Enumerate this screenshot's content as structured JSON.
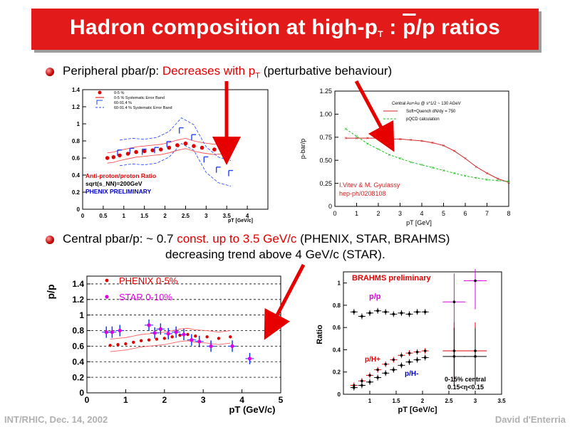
{
  "slide": {
    "title_main": "Hadron composition at high-p",
    "title_sub": "T",
    "title_sep": " : ",
    "title_pbar": "p",
    "title_tail": "/p ratios",
    "bullet1": {
      "prefix": "Peripheral pbar/p: ",
      "highlight": "Decreases with p",
      "highlight_sub": "T",
      "suffix": " (perturbative behaviour)"
    },
    "bullet2": {
      "prefix": "Central pbar/p:  ~ 0.7 ",
      "highlight": "const. up to 3.5 GeV/c",
      "suffix": " (PHENIX, STAR, BRAHMS)",
      "line2": "decreasing trend above 4 GeV/c (STAR)."
    },
    "footer_left": "INT/RHIC, Dec. 14, 2002",
    "footer_right": "David d'Enterria",
    "accent_color": "#e21a1a"
  },
  "chart_data": [
    {
      "type": "scatter",
      "legend": [
        "0-5 %",
        "0-5 % Systematic Error Band",
        "60-91.4 %",
        "60-91.4 % Systematic Error Band"
      ],
      "annotation_1": "Anti-proton/proton Ratio",
      "annotation_2": "sqrt(s_NN)=200GeV",
      "annotation_3": "PHENIX PRELIMINARY",
      "xlabel": "pT [GeV/c]",
      "ylabel": "",
      "xlim": [
        0,
        4.5
      ],
      "ylim": [
        0,
        1.4
      ],
      "xticks": [
        "0",
        "0.5",
        "1",
        "1.5",
        "2",
        "2.5",
        "3",
        "3.5",
        "4"
      ],
      "yticks": [
        "0",
        "0.2",
        "0.4",
        "0.6",
        "0.8",
        "1",
        "1.2",
        "1.4"
      ],
      "series": [
        {
          "name": "0-5 %",
          "x": [
            0.6,
            0.75,
            0.9,
            1.1,
            1.3,
            1.5,
            1.7,
            1.9,
            2.1,
            2.3,
            2.5,
            2.7,
            2.9,
            3.2,
            3.6
          ],
          "values": [
            0.6,
            0.61,
            0.63,
            0.65,
            0.67,
            0.68,
            0.69,
            0.7,
            0.72,
            0.75,
            0.77,
            0.74,
            0.72,
            0.7,
            0.72
          ]
        },
        {
          "name": "60-91.4 %",
          "x": [
            0.9,
            1.2,
            1.5,
            1.8,
            2.1,
            2.4,
            2.7,
            3.0,
            3.3,
            3.6
          ],
          "values": [
            0.66,
            0.68,
            0.67,
            0.69,
            0.76,
            0.92,
            0.84,
            0.58,
            0.46,
            0.42
          ]
        }
      ]
    },
    {
      "type": "line",
      "annotation_1": "Central Au+Au @ s^1/2 ~ 130 AGeV",
      "legend": [
        "Soft+Quench dN/dy = 750",
        "pQCD calculation"
      ],
      "credit_1": "I.Vitev & M. Gyulassy",
      "credit_2": "hep-ph/0208108",
      "xlabel": "pT [GeV]",
      "ylabel": "p-bar/p",
      "xlim": [
        0,
        8
      ],
      "ylim": [
        0,
        1.25
      ],
      "xticks": [
        "0",
        "1",
        "2",
        "3",
        "4",
        "5",
        "6",
        "7",
        "8"
      ],
      "yticks": [
        "0",
        "0.25",
        "0.50",
        "0.75",
        "1.00",
        "1.25"
      ],
      "series": [
        {
          "name": "Soft+Quench dN/dy = 750",
          "x": [
            0.5,
            1,
            1.5,
            2,
            2.5,
            3,
            3.5,
            4,
            4.5,
            5,
            5.5,
            6,
            6.5,
            7,
            7.5,
            8
          ],
          "values": [
            0.74,
            0.74,
            0.74,
            0.74,
            0.73,
            0.73,
            0.72,
            0.71,
            0.69,
            0.66,
            0.6,
            0.52,
            0.43,
            0.36,
            0.3,
            0.26
          ]
        },
        {
          "name": "pQCD calculation",
          "x": [
            0.5,
            1,
            1.5,
            2,
            2.5,
            3,
            3.5,
            4,
            4.5,
            5,
            5.5,
            6,
            6.5,
            7,
            7.5,
            8
          ],
          "values": [
            0.84,
            0.76,
            0.68,
            0.62,
            0.56,
            0.52,
            0.48,
            0.45,
            0.42,
            0.39,
            0.36,
            0.33,
            0.31,
            0.29,
            0.28,
            0.27
          ]
        }
      ]
    },
    {
      "type": "scatter",
      "legend": [
        "PHENIX 0-5%",
        "STAR 0-10%"
      ],
      "xlabel": "pT (GeV/c)",
      "ylabel": "p/p",
      "xlim": [
        0,
        5
      ],
      "ylim": [
        0,
        1.5
      ],
      "xticks": [
        "0",
        "1",
        "2",
        "3",
        "4",
        "5"
      ],
      "yticks": [
        "0",
        "0.2",
        "0.4",
        "0.6",
        "0.8",
        "1",
        "1.2",
        "1.4"
      ],
      "series": [
        {
          "name": "PHENIX 0-5%",
          "x": [
            0.6,
            0.8,
            1.0,
            1.2,
            1.4,
            1.6,
            1.8,
            2.0,
            2.2,
            2.4,
            2.6,
            2.8,
            3.1,
            3.4,
            3.7
          ],
          "values": [
            0.61,
            0.62,
            0.63,
            0.65,
            0.67,
            0.68,
            0.69,
            0.7,
            0.72,
            0.74,
            0.75,
            0.73,
            0.72,
            0.7,
            0.72
          ]
        },
        {
          "name": "STAR 0-10%",
          "x": [
            0.5,
            0.65,
            0.85,
            1.6,
            1.75,
            1.9,
            2.1,
            2.3,
            2.5,
            2.7,
            2.9,
            3.2,
            3.75,
            4.2
          ],
          "values": [
            0.78,
            0.78,
            0.8,
            0.87,
            0.77,
            0.82,
            0.76,
            0.78,
            0.75,
            0.68,
            0.66,
            0.6,
            0.6,
            0.44
          ]
        }
      ]
    },
    {
      "type": "scatter",
      "title": "BRAHMS preliminary",
      "labels": [
        "p/p",
        "p/H+",
        "p/H-",
        "0-15% central",
        "0.15<η<0.15"
      ],
      "xlabel": "pT [GeV/c]",
      "ylabel": "Ratio",
      "xlim": [
        0.5,
        3.5
      ],
      "ylim": [
        0,
        1.1
      ],
      "xticks": [
        "1",
        "1.5",
        "2",
        "2.5",
        "3",
        "3.5"
      ],
      "yticks": [
        "0",
        "0.2",
        "0.4",
        "0.6",
        "0.8",
        "1"
      ],
      "series": [
        {
          "name": "p/p",
          "x": [
            0.7,
            0.85,
            1.0,
            1.15,
            1.3,
            1.45,
            1.6,
            1.75,
            1.9,
            2.05,
            2.6,
            3.0
          ],
          "values": [
            0.74,
            0.7,
            0.73,
            0.75,
            0.74,
            0.72,
            0.73,
            0.72,
            0.74,
            0.74,
            0.83,
            1.02
          ]
        },
        {
          "name": "p/H+",
          "x": [
            0.7,
            0.85,
            1.0,
            1.15,
            1.3,
            1.45,
            1.6,
            1.75,
            1.9,
            2.05,
            2.6,
            3.0
          ],
          "values": [
            0.08,
            0.12,
            0.17,
            0.22,
            0.27,
            0.31,
            0.35,
            0.37,
            0.38,
            0.39,
            0.39,
            0.39
          ]
        },
        {
          "name": "p/H-",
          "x": [
            0.7,
            0.85,
            1.0,
            1.15,
            1.3,
            1.45,
            1.6,
            1.75,
            1.9,
            2.05,
            2.6,
            3.0
          ],
          "values": [
            0.06,
            0.08,
            0.11,
            0.15,
            0.19,
            0.22,
            0.26,
            0.29,
            0.31,
            0.33,
            0.34,
            0.34
          ]
        }
      ]
    }
  ]
}
